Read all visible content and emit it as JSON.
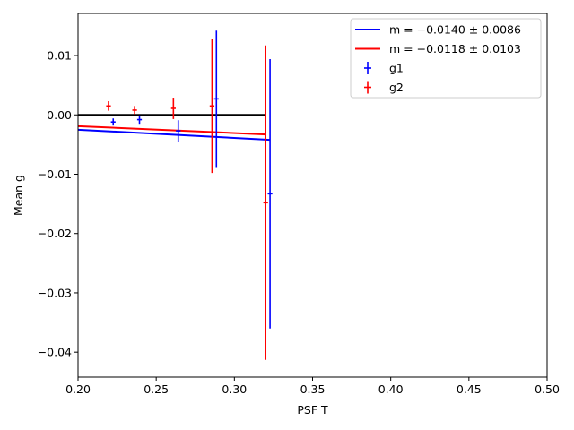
{
  "chart_data": {
    "type": "scatter",
    "xlabel": "PSF T",
    "ylabel": "Mean g",
    "xlim": [
      0.2,
      0.5
    ],
    "ylim": [
      -0.0442,
      0.0171
    ],
    "xticks": [
      "0.20",
      "0.25",
      "0.30",
      "0.35",
      "0.40",
      "0.45",
      "0.50"
    ],
    "xtick_values": [
      0.2,
      0.25,
      0.3,
      0.35,
      0.4,
      0.45,
      0.5
    ],
    "yticks": [
      "−0.04",
      "−0.03",
      "−0.02",
      "−0.01",
      "0.00",
      "0.01"
    ],
    "ytick_values": [
      -0.04,
      -0.03,
      -0.02,
      -0.01,
      0.0,
      0.01
    ],
    "grid": false,
    "legend_position": "top-right",
    "zero_line": {
      "x": [
        0.2,
        0.32
      ],
      "y": 0.0,
      "color": "#000000"
    },
    "series": [
      {
        "name": "g1",
        "color": "#0000ff",
        "points": [
          {
            "x": 0.2225,
            "y": -0.0012,
            "yerr": 0.0006,
            "xerr": 0.0015
          },
          {
            "x": 0.2393,
            "y": -0.0008,
            "yerr": 0.0007,
            "xerr": 0.0015
          },
          {
            "x": 0.2641,
            "y": -0.0027,
            "yerr": 0.0018,
            "xerr": 0.0015
          },
          {
            "x": 0.2885,
            "y": 0.0027,
            "yerr": 0.0115,
            "xerr": 0.0015
          },
          {
            "x": 0.3228,
            "y": -0.0133,
            "yerr": 0.0227,
            "xerr": 0.0015
          }
        ]
      },
      {
        "name": "g2",
        "color": "#ff0000",
        "points": [
          {
            "x": 0.2195,
            "y": 0.0015,
            "yerr": 0.0008,
            "xerr": 0.0015
          },
          {
            "x": 0.2362,
            "y": 0.0008,
            "yerr": 0.0007,
            "xerr": 0.0015
          },
          {
            "x": 0.261,
            "y": 0.0011,
            "yerr": 0.0018,
            "xerr": 0.0015
          },
          {
            "x": 0.2857,
            "y": 0.0015,
            "yerr": 0.0113,
            "xerr": 0.0015
          },
          {
            "x": 0.32,
            "y": -0.0148,
            "yerr": 0.0265,
            "xerr": 0.0015
          }
        ]
      }
    ],
    "fits": [
      {
        "label": "m = −0.0140 ± 0.0086",
        "color": "#0000ff",
        "x": [
          0.2,
          0.3228
        ],
        "y": [
          -0.0025,
          -0.0042
        ]
      },
      {
        "label": "m = −0.0118 ± 0.0103",
        "color": "#ff0000",
        "x": [
          0.2,
          0.32
        ],
        "y": [
          -0.0019,
          -0.0033
        ]
      }
    ],
    "legend": [
      {
        "kind": "line",
        "label": "m = −0.0140 ± 0.0086",
        "color": "#0000ff"
      },
      {
        "kind": "line",
        "label": "m = −0.0118 ± 0.0103",
        "color": "#ff0000"
      },
      {
        "kind": "errorbar",
        "label": "g1",
        "color": "#0000ff"
      },
      {
        "kind": "errorbar",
        "label": "g2",
        "color": "#ff0000"
      }
    ]
  }
}
